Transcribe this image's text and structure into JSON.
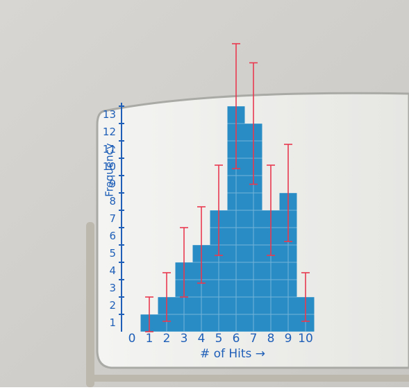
{
  "chart_data": {
    "type": "bar",
    "xlabel": "# of Hits →",
    "ylabel": "Frequency",
    "x": [
      1,
      2,
      3,
      4,
      5,
      6,
      7,
      8,
      9,
      10
    ],
    "values": [
      1,
      2,
      4,
      5,
      7,
      13,
      12,
      7,
      8,
      2
    ],
    "errors": [
      1,
      1.4,
      2,
      2.2,
      2.6,
      3.6,
      3.5,
      2.6,
      2.8,
      1.4
    ],
    "color": "#2a8cc4",
    "error_color": "#e8394f",
    "xlim": [
      -0.6,
      10.6
    ],
    "xticks": [
      0,
      1,
      2,
      3,
      4,
      5,
      6,
      7,
      8,
      9,
      10
    ],
    "ylim": [
      0,
      13.2
    ],
    "yticks": [
      1,
      2,
      3,
      4,
      5,
      6,
      7,
      8,
      9,
      10,
      11,
      12,
      13
    ]
  }
}
